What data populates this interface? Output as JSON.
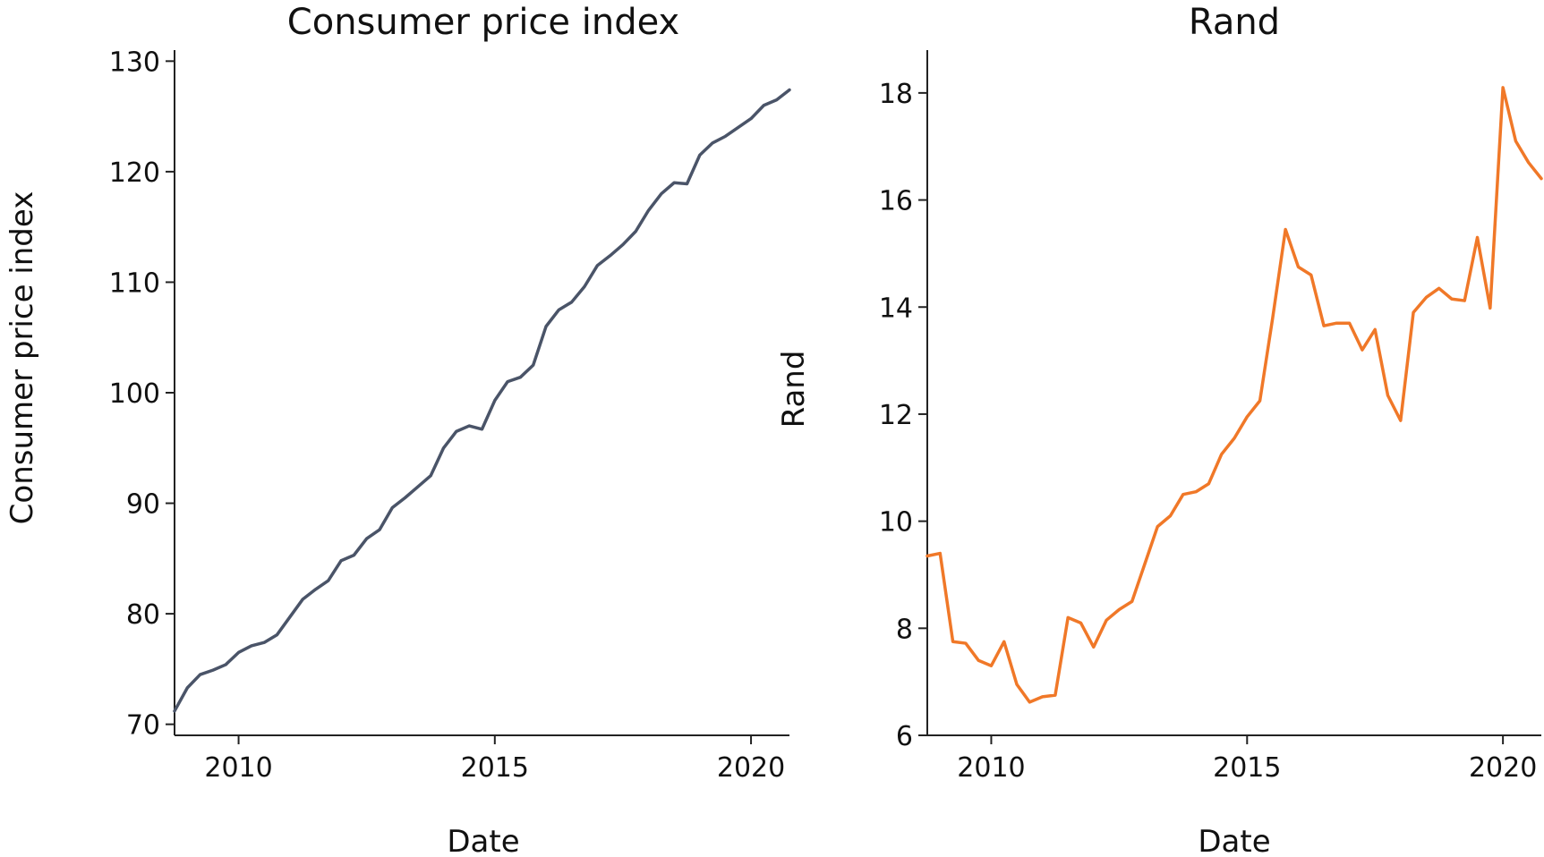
{
  "colors": {
    "cpi_line": "#4a5468",
    "rand_line": "#f07828"
  },
  "chart_data": [
    {
      "type": "line",
      "title": "Consumer price index",
      "xlabel": "Date",
      "ylabel": "Consumer price index",
      "x_unit": "year",
      "xlim": [
        2008.75,
        2020.75
      ],
      "ylim": [
        69,
        131
      ],
      "x_ticks": [
        2010,
        2015,
        2020
      ],
      "y_ticks": [
        70,
        80,
        90,
        100,
        110,
        120,
        130
      ],
      "grid": false,
      "series": [
        {
          "color_key": "cpi_line",
          "x": [
            2008.75,
            2009.0,
            2009.25,
            2009.5,
            2009.75,
            2010.0,
            2010.25,
            2010.5,
            2010.75,
            2011.0,
            2011.25,
            2011.5,
            2011.75,
            2012.0,
            2012.25,
            2012.5,
            2012.75,
            2013.0,
            2013.25,
            2013.5,
            2013.75,
            2014.0,
            2014.25,
            2014.5,
            2014.75,
            2015.0,
            2015.25,
            2015.5,
            2015.75,
            2016.0,
            2016.25,
            2016.5,
            2016.75,
            2017.0,
            2017.25,
            2017.5,
            2017.75,
            2018.0,
            2018.25,
            2018.5,
            2018.75,
            2019.0,
            2019.25,
            2019.5,
            2019.75,
            2020.0,
            2020.25,
            2020.5,
            2020.75
          ],
          "y": [
            71.2,
            73.3,
            74.5,
            74.9,
            75.4,
            76.5,
            77.1,
            77.4,
            78.1,
            79.7,
            81.3,
            82.2,
            83.0,
            84.8,
            85.3,
            86.8,
            87.6,
            89.6,
            90.5,
            91.5,
            92.5,
            95.0,
            96.5,
            97.0,
            96.7,
            99.3,
            101.0,
            101.4,
            102.5,
            106.0,
            107.5,
            108.2,
            109.6,
            111.5,
            112.4,
            113.4,
            114.6,
            116.5,
            118.0,
            119.0,
            118.9,
            121.5,
            122.6,
            123.2,
            124.0,
            124.8,
            126.0,
            126.5,
            127.4
          ]
        }
      ]
    },
    {
      "type": "line",
      "title": "Rand",
      "xlabel": "Date",
      "ylabel": "Rand",
      "x_unit": "year",
      "xlim": [
        2008.75,
        2020.75
      ],
      "ylim": [
        6,
        18.8
      ],
      "x_ticks": [
        2010,
        2015,
        2020
      ],
      "y_ticks": [
        6,
        8,
        10,
        12,
        14,
        16,
        18
      ],
      "grid": false,
      "series": [
        {
          "color_key": "rand_line",
          "x": [
            2008.75,
            2009.0,
            2009.25,
            2009.5,
            2009.75,
            2010.0,
            2010.25,
            2010.5,
            2010.75,
            2011.0,
            2011.25,
            2011.5,
            2011.75,
            2012.0,
            2012.25,
            2012.5,
            2012.75,
            2013.0,
            2013.25,
            2013.5,
            2013.75,
            2014.0,
            2014.25,
            2014.5,
            2014.75,
            2015.0,
            2015.25,
            2015.5,
            2015.75,
            2016.0,
            2016.25,
            2016.5,
            2016.75,
            2017.0,
            2017.25,
            2017.5,
            2017.75,
            2018.0,
            2018.25,
            2018.5,
            2018.75,
            2019.0,
            2019.25,
            2019.5,
            2019.75,
            2020.0,
            2020.25,
            2020.5,
            2020.75
          ],
          "y": [
            9.35,
            9.4,
            7.75,
            7.72,
            7.4,
            7.3,
            7.75,
            6.95,
            6.62,
            6.72,
            6.75,
            8.2,
            8.1,
            7.65,
            8.15,
            8.35,
            8.5,
            9.2,
            9.9,
            10.1,
            10.5,
            10.55,
            10.7,
            11.25,
            11.55,
            11.95,
            12.25,
            13.8,
            15.45,
            14.75,
            14.6,
            13.65,
            13.7,
            13.7,
            13.2,
            13.58,
            12.35,
            11.88,
            13.9,
            14.18,
            14.35,
            14.15,
            14.12,
            15.3,
            13.98,
            18.1,
            17.1,
            16.7,
            16.4
          ]
        }
      ]
    }
  ]
}
